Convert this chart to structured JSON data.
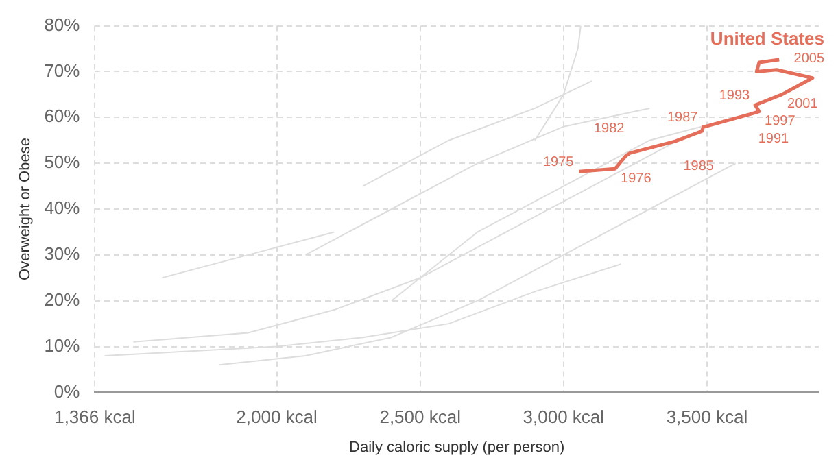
{
  "chart_data": {
    "type": "line",
    "xlabel": "Daily caloric supply (per person)",
    "ylabel": "Overweight or Obese",
    "xlim": [
      1366,
      3890
    ],
    "xticks": [
      {
        "value": 1366,
        "label": "1,366 kcal"
      },
      {
        "value": 2000,
        "label": "2,000 kcal"
      },
      {
        "value": 2500,
        "label": "2,500 kcal"
      },
      {
        "value": 3000,
        "label": "3,000 kcal"
      },
      {
        "value": 3500,
        "label": "3,500 kcal"
      }
    ],
    "ylim": [
      0,
      80
    ],
    "yticks": [
      {
        "value": 0,
        "label": "0%"
      },
      {
        "value": 10,
        "label": "10%"
      },
      {
        "value": 20,
        "label": "20%"
      },
      {
        "value": 30,
        "label": "30%"
      },
      {
        "value": 40,
        "label": "40%"
      },
      {
        "value": 50,
        "label": "50%"
      },
      {
        "value": 60,
        "label": "60%"
      },
      {
        "value": 70,
        "label": "70%"
      },
      {
        "value": 80,
        "label": "80%"
      }
    ],
    "grid": true,
    "legend": false,
    "marker": "none",
    "line_style": "solid",
    "series": [
      {
        "color": "#dddddd",
        "x": [
          1400,
          1700,
          2000,
          2300,
          2600,
          2900,
          3200
        ],
        "values": [
          8,
          9,
          10,
          12,
          15,
          22,
          28
        ]
      },
      {
        "color": "#dddddd",
        "x": [
          1500,
          1900,
          2200,
          2500,
          2800,
          3100,
          3400
        ],
        "values": [
          11,
          13,
          18,
          25,
          35,
          45,
          55
        ]
      },
      {
        "color": "#dddddd",
        "x": [
          1800,
          2100,
          2400,
          2700,
          3000,
          3300,
          3600
        ],
        "values": [
          6,
          8,
          12,
          20,
          30,
          40,
          50
        ]
      },
      {
        "color": "#dddddd",
        "x": [
          2100,
          2400,
          2700,
          3000,
          3300
        ],
        "values": [
          30,
          40,
          50,
          58,
          62
        ]
      },
      {
        "color": "#dddddd",
        "x": [
          2300,
          2600,
          2900,
          3100
        ],
        "values": [
          45,
          55,
          62,
          68
        ]
      },
      {
        "color": "#dddddd",
        "x": [
          2900,
          3000,
          3050,
          3060
        ],
        "values": [
          55,
          65,
          75,
          80
        ]
      },
      {
        "color": "#dddddd",
        "x": [
          2400,
          2700,
          3000,
          3300,
          3600
        ],
        "values": [
          20,
          35,
          45,
          55,
          60
        ]
      },
      {
        "color": "#dddddd",
        "x": [
          1600,
          1900,
          2200
        ],
        "values": [
          25,
          30,
          35
        ]
      },
      {
        "name": "United States",
        "color": "#e56e5a",
        "x": [
          3054,
          3180,
          3217,
          3231,
          3389,
          3482,
          3487,
          3650,
          3682,
          3668,
          3761,
          3785,
          3868,
          3743,
          3673,
          3682,
          3752
        ],
        "values": [
          48.2,
          48.8,
          51.6,
          52.2,
          54.8,
          57,
          57.9,
          60.7,
          61.3,
          62.7,
          65,
          65.8,
          68.6,
          70.4,
          70,
          72,
          72.6
        ]
      }
    ],
    "annotations": [
      {
        "text": "1975",
        "x": 3054,
        "y": 48.2
      },
      {
        "text": "1976",
        "x": 3180,
        "y": 48.8
      },
      {
        "text": "1982",
        "x": 3231,
        "y": 52.2
      },
      {
        "text": "1985",
        "x": 3389,
        "y": 54.8
      },
      {
        "text": "1987",
        "x": 3487,
        "y": 57.9
      },
      {
        "text": "1991",
        "x": 3650,
        "y": 60.7
      },
      {
        "text": "1993",
        "x": 3668,
        "y": 62.7
      },
      {
        "text": "1997",
        "x": 3682,
        "y": 61.3
      },
      {
        "text": "2001",
        "x": 3761,
        "y": 65
      },
      {
        "text": "2005",
        "x": 3868,
        "y": 68.6
      }
    ]
  }
}
